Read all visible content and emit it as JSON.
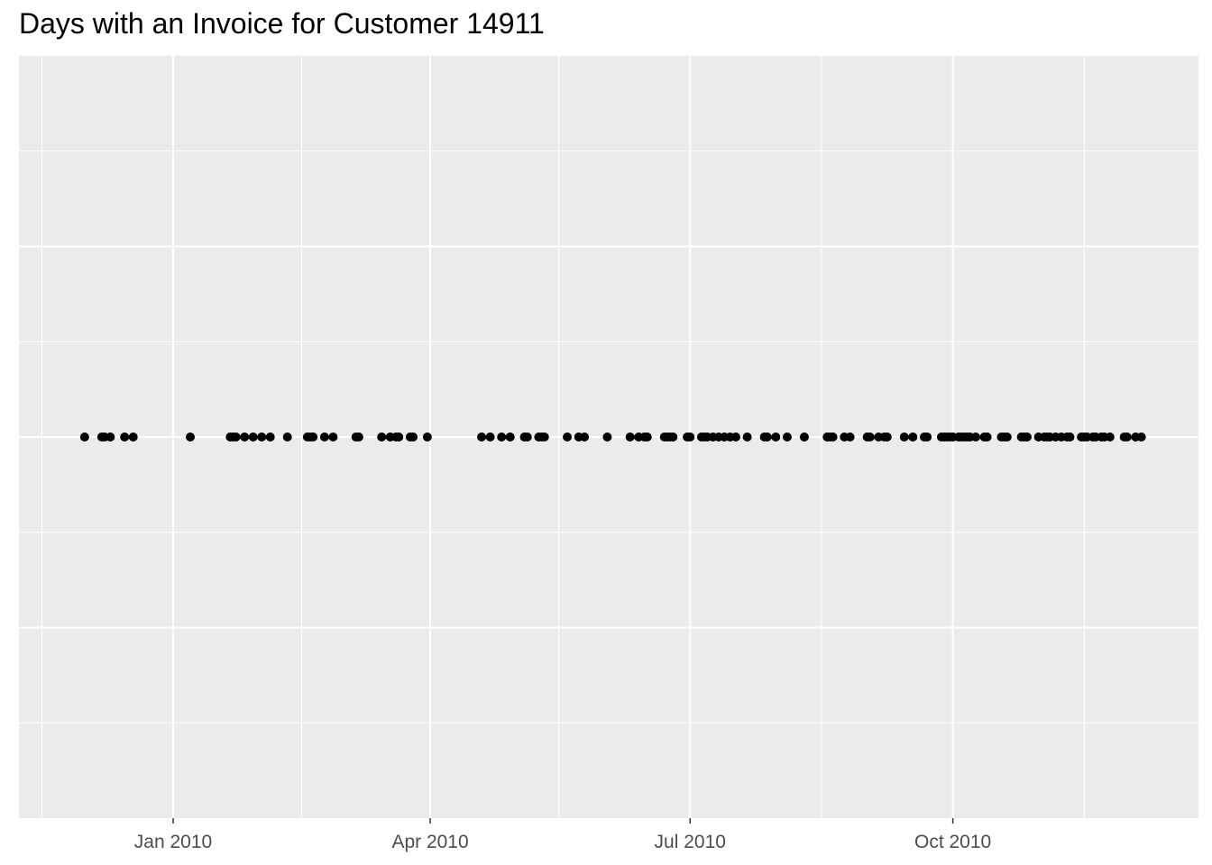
{
  "chart_data": {
    "type": "scatter",
    "title": "Days with an Invoice for Customer 14911",
    "xlabel": "",
    "ylabel": "",
    "x_axis": {
      "scale": "date",
      "range": [
        "2009-11-08",
        "2010-12-26"
      ],
      "ticks": [
        {
          "date": "2010-01-01",
          "label": "Jan 2010"
        },
        {
          "date": "2010-04-01",
          "label": "Apr 2010"
        },
        {
          "date": "2010-07-01",
          "label": "Jul 2010"
        },
        {
          "date": "2010-10-01",
          "label": "Oct 2010"
        }
      ],
      "minor_ticks": [
        "2009-11-16",
        "2010-02-15",
        "2010-05-16",
        "2010-08-16",
        "2010-11-16"
      ]
    },
    "y_axis": {
      "visible": false,
      "range": [
        0,
        1
      ]
    },
    "grid": true,
    "background_color": "#ebebeb",
    "gridline_color": "#ffffff",
    "point_color": "#000000",
    "series": [
      {
        "y": 0.5,
        "x": [
          "2009-12-01",
          "2009-12-07",
          "2009-12-08",
          "2009-12-10",
          "2009-12-15",
          "2009-12-18",
          "2010-01-07",
          "2010-01-21",
          "2010-01-22",
          "2010-01-23",
          "2010-01-26",
          "2010-01-29",
          "2010-02-01",
          "2010-02-04",
          "2010-02-10",
          "2010-02-17",
          "2010-02-18",
          "2010-02-19",
          "2010-02-23",
          "2010-02-26",
          "2010-03-06",
          "2010-03-07",
          "2010-03-15",
          "2010-03-18",
          "2010-03-20",
          "2010-03-21",
          "2010-03-25",
          "2010-03-26",
          "2010-03-31",
          "2010-04-19",
          "2010-04-22",
          "2010-04-26",
          "2010-04-29",
          "2010-05-04",
          "2010-05-05",
          "2010-05-09",
          "2010-05-10",
          "2010-05-11",
          "2010-05-19",
          "2010-05-23",
          "2010-05-25",
          "2010-06-02",
          "2010-06-10",
          "2010-06-13",
          "2010-06-15",
          "2010-06-16",
          "2010-06-22",
          "2010-06-23",
          "2010-06-24",
          "2010-06-25",
          "2010-06-30",
          "2010-07-01",
          "2010-07-05",
          "2010-07-06",
          "2010-07-07",
          "2010-07-09",
          "2010-07-11",
          "2010-07-13",
          "2010-07-15",
          "2010-07-17",
          "2010-07-21",
          "2010-07-27",
          "2010-07-28",
          "2010-07-31",
          "2010-08-04",
          "2010-08-10",
          "2010-08-18",
          "2010-08-19",
          "2010-08-20",
          "2010-08-24",
          "2010-08-26",
          "2010-09-01",
          "2010-09-02",
          "2010-09-05",
          "2010-09-07",
          "2010-09-08",
          "2010-09-14",
          "2010-09-17",
          "2010-09-21",
          "2010-09-22",
          "2010-09-27",
          "2010-09-28",
          "2010-09-29",
          "2010-09-30",
          "2010-10-01",
          "2010-10-03",
          "2010-10-04",
          "2010-10-05",
          "2010-10-06",
          "2010-10-07",
          "2010-10-09",
          "2010-10-12",
          "2010-10-13",
          "2010-10-18",
          "2010-10-19",
          "2010-10-20",
          "2010-10-25",
          "2010-10-26",
          "2010-10-27",
          "2010-10-31",
          "2010-11-02",
          "2010-11-03",
          "2010-11-04",
          "2010-11-06",
          "2010-11-08",
          "2010-11-10",
          "2010-11-11",
          "2010-11-15",
          "2010-11-16",
          "2010-11-17",
          "2010-11-19",
          "2010-11-20",
          "2010-11-22",
          "2010-11-23",
          "2010-11-25",
          "2010-11-30",
          "2010-12-01",
          "2010-12-04",
          "2010-12-06"
        ]
      }
    ]
  }
}
